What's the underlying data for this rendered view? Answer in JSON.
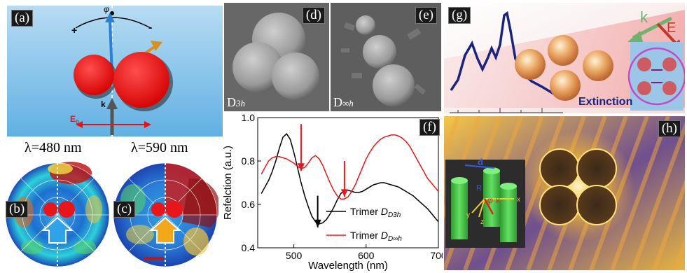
{
  "panel_labels": {
    "a": "(a)",
    "b": "(b)",
    "c": "(c)",
    "d": "(d)",
    "e": "(e)",
    "f": "(f)",
    "g": "(g)",
    "h": "(h)"
  },
  "panel_a": {
    "phi": "φ",
    "plus": "+",
    "minus": "-",
    "k": "k",
    "E0": "E",
    "E0_sub": "0"
  },
  "polar_captions": {
    "b": "λ=480 nm",
    "c": "λ=590 nm"
  },
  "sem_captions": {
    "d_main": "D",
    "d_sub": "3h",
    "e_main": "D",
    "e_sub": "∞h"
  },
  "panel_g": {
    "k": "k",
    "E": "E",
    "extinction": "Extinction"
  },
  "panel_h": {
    "d": "d",
    "R": "R",
    "phi": "φ",
    "K": "K",
    "x": "x",
    "y": "y",
    "z": "z"
  },
  "colors": {
    "trimer_d3h": "#000000",
    "trimer_dinf": "#e8161b",
    "arrow_red": "#e8161b",
    "extinction_line": "#1a237e"
  },
  "chart_data": {
    "type": "line",
    "xlabel": "Wavelength (nm)",
    "ylabel": "Refelction (a.u.)",
    "xlim": [
      450,
      700
    ],
    "ylim": [
      0.4,
      1.0
    ],
    "xticks": [
      500,
      600,
      700
    ],
    "yticks": [
      0.4,
      0.6,
      0.8,
      1.0
    ],
    "legend_position": "bottom-right",
    "series": [
      {
        "name": "Trimer",
        "sub": "D3h",
        "color": "#000000",
        "x": [
          455,
          460,
          465,
          470,
          475,
          480,
          485,
          490,
          495,
          500,
          505,
          510,
          515,
          520,
          525,
          530,
          535,
          540,
          545,
          550,
          555,
          560,
          565,
          570,
          575,
          580,
          585,
          590,
          595,
          600,
          605,
          610,
          615,
          620,
          625,
          630,
          635,
          640,
          645,
          650,
          655,
          660,
          665,
          670,
          675,
          680,
          685,
          690,
          695,
          700
        ],
        "y": [
          0.65,
          0.68,
          0.71,
          0.75,
          0.8,
          0.86,
          0.91,
          0.925,
          0.9,
          0.84,
          0.77,
          0.7,
          0.64,
          0.59,
          0.545,
          0.52,
          0.51,
          0.515,
          0.53,
          0.555,
          0.585,
          0.62,
          0.65,
          0.665,
          0.665,
          0.66,
          0.655,
          0.655,
          0.66,
          0.67,
          0.68,
          0.69,
          0.695,
          0.7,
          0.7,
          0.695,
          0.69,
          0.685,
          0.68,
          0.67,
          0.66,
          0.65,
          0.64,
          0.625,
          0.61,
          0.595,
          0.58,
          0.56,
          0.54,
          0.52
        ]
      },
      {
        "name": "Trimer",
        "sub": "D∞h",
        "color": "#e8161b",
        "x": [
          455,
          460,
          465,
          470,
          475,
          480,
          485,
          490,
          495,
          500,
          505,
          510,
          515,
          520,
          525,
          530,
          535,
          540,
          545,
          550,
          555,
          560,
          565,
          570,
          575,
          580,
          585,
          590,
          595,
          600,
          605,
          610,
          615,
          620,
          625,
          630,
          635,
          640,
          645,
          650,
          655,
          660,
          665,
          670,
          675,
          680,
          685,
          690,
          695,
          700
        ],
        "y": [
          0.74,
          0.77,
          0.8,
          0.815,
          0.82,
          0.82,
          0.815,
          0.81,
          0.8,
          0.79,
          0.775,
          0.765,
          0.77,
          0.79,
          0.815,
          0.825,
          0.81,
          0.78,
          0.74,
          0.7,
          0.665,
          0.64,
          0.625,
          0.625,
          0.635,
          0.66,
          0.69,
          0.73,
          0.77,
          0.81,
          0.84,
          0.865,
          0.885,
          0.9,
          0.91,
          0.915,
          0.92,
          0.92,
          0.915,
          0.905,
          0.89,
          0.87,
          0.84,
          0.81,
          0.78,
          0.75,
          0.72,
          0.7,
          0.68,
          0.66
        ]
      }
    ],
    "annotations": [
      {
        "type": "arrow",
        "color": "red",
        "x": 510,
        "from_y": 0.97,
        "to_y": 0.78
      },
      {
        "type": "arrow",
        "color": "red",
        "x": 570,
        "from_y": 0.8,
        "to_y": 0.66
      },
      {
        "type": "arrow",
        "color": "black",
        "x": 533,
        "from_y": 0.64,
        "to_y": 0.52
      }
    ]
  }
}
